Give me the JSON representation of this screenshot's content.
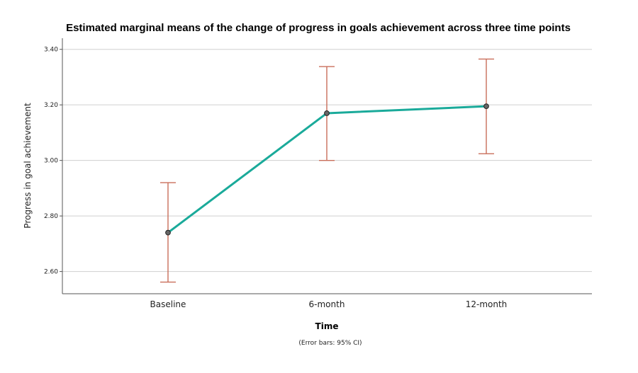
{
  "chart_data": {
    "type": "line",
    "title": "Estimated marginal means of the change of progress in goals achievement across three time points",
    "xlabel": "Time",
    "ylabel": "Progress in goal achievement",
    "note": "(Error bars: 95% CI)",
    "categories": [
      "Baseline",
      "6-month",
      "12-month"
    ],
    "series": [
      {
        "values": [
          2.74,
          3.17,
          3.195
        ],
        "ci_lower": [
          2.562,
          3.0,
          3.024
        ],
        "ci_upper": [
          2.92,
          3.338,
          3.365
        ]
      }
    ],
    "ylim": [
      2.52,
      3.44
    ],
    "yticks": [
      2.6,
      2.8,
      3.0,
      3.2,
      3.4
    ],
    "ytick_labels": [
      "2.60",
      "2.80",
      "3.00",
      "3.20",
      "3.40"
    ],
    "grid": "horizontal",
    "colors": {
      "line": "#1aaa9a",
      "errorbar": "#c96e5a",
      "marker": "#666666",
      "grid": "#cfcfcf"
    }
  }
}
